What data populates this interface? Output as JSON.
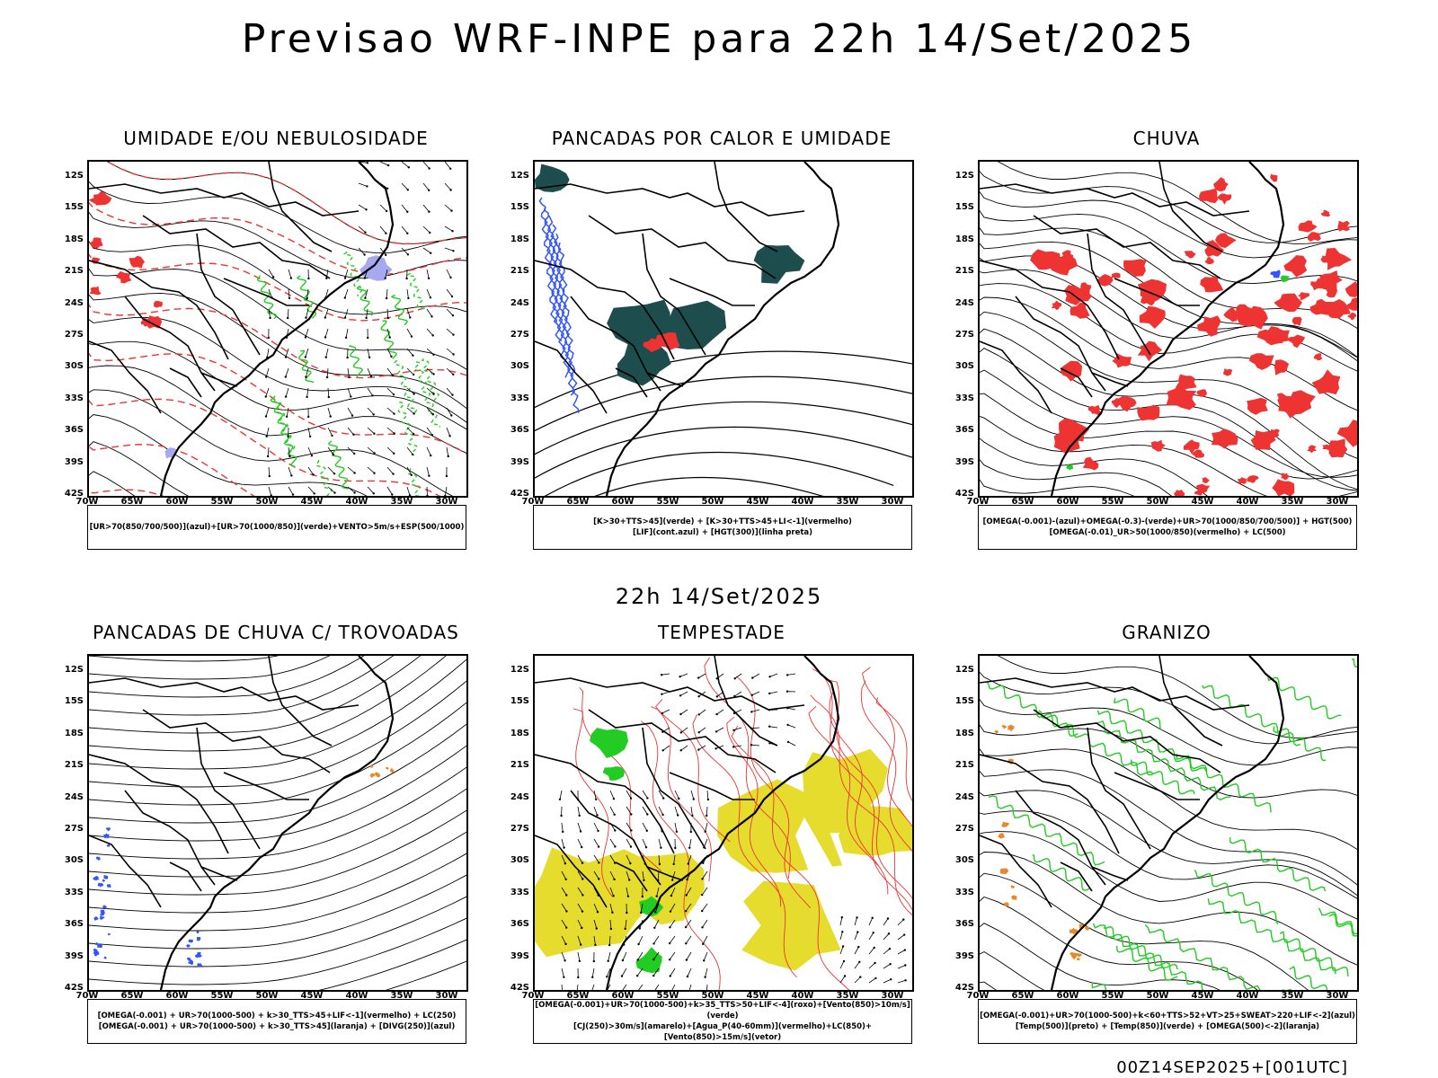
{
  "header": {
    "title": "Previsao WRF-INPE  para 22h 14/Set/2025"
  },
  "middle_title": "22h 14/Set/2025",
  "footer": "00Z14SEP2025+[001UTC]",
  "lat_labels": [
    "12S",
    "15S",
    "18S",
    "21S",
    "24S",
    "27S",
    "30S",
    "33S",
    "36S",
    "39S",
    "42S"
  ],
  "lon_labels": [
    "70W",
    "65W",
    "60W",
    "55W",
    "50W",
    "45W",
    "40W",
    "35W",
    "30W"
  ],
  "colors": {
    "green": "#22cc22",
    "red": "#ee3333",
    "blue": "#3355ff",
    "teal": "#1e4d4d",
    "yellow": "#e6dc2e",
    "orange": "#e8882a",
    "lightblue": "#a8a8f0"
  },
  "panels": [
    {
      "title": "UMIDADE E/OU NEBULOSIDADE",
      "legend": [
        "[UR>70(850/700/500)](azul)+[UR>70(1000/850)](verde)+VENTO>5m/s+ESP(500/1000)"
      ],
      "kind": "umidade"
    },
    {
      "title": "PANCADAS POR CALOR E UMIDADE",
      "legend": [
        "[K>30+TTS>45](verde) + [K>30+TTS>45+LI<-1](vermelho)",
        "[LIF](cont.azul) + [HGT(300)](linha preta)"
      ],
      "kind": "calor"
    },
    {
      "title": "CHUVA",
      "legend": [
        "[OMEGA(-0.001)-(azul)+OMEGA(-0.3)-(verde)+UR>70(1000/850/700/500)] + HGT(500)",
        "[OMEGA(-0.01)_UR>50(1000/850)(vermelho) + LC(500)"
      ],
      "kind": "chuva"
    },
    {
      "title": "PANCADAS DE CHUVA C/ TROVOADAS",
      "legend": [
        "[OMEGA(-0.001) + UR>70(1000-500) + k>30_TTS>45+LIF<-1](vermelho) + LC(250)",
        "[OMEGA(-0.001) + UR>70(1000-500) + k>30_TTS>45](laranja) + [DIVG(250)](azul)"
      ],
      "kind": "trovoadas"
    },
    {
      "title": "TEMPESTADE",
      "legend": [
        "[OMEGA(-0.001)+UR>70(1000-500)+k>35_TTS>50+LIF<-4](roxo)+[Vento(850)>10m/s](verde)",
        "[CJ(250)>30m/s](amarelo)+[Agua_P(40-60mm)](vermelho)+LC(850)+[Vento(850)>15m/s](vetor)"
      ],
      "kind": "tempestade"
    },
    {
      "title": "GRANIZO",
      "legend": [
        "[OMEGA(-0.001)+UR>70(1000-500)+k<60+TTS>52+VT>25+SWEAT>220+LIF<-2](azul)",
        "[Temp(500)](preto) + [Temp(850)](verde) + [OMEGA(500)<-2](laranja)"
      ],
      "kind": "granizo"
    }
  ]
}
